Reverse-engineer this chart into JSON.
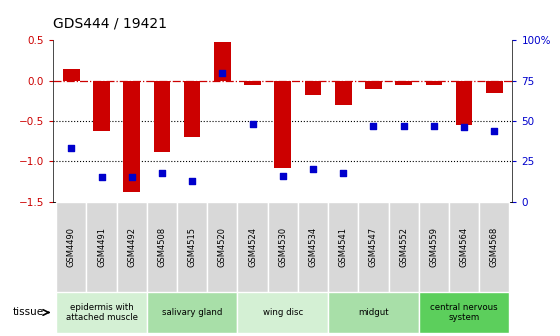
{
  "title": "GDS444 / 19421",
  "samples": [
    "GSM4490",
    "GSM4491",
    "GSM4492",
    "GSM4508",
    "GSM4515",
    "GSM4520",
    "GSM4524",
    "GSM4530",
    "GSM4534",
    "GSM4541",
    "GSM4547",
    "GSM4552",
    "GSM4559",
    "GSM4564",
    "GSM4568"
  ],
  "log_ratio": [
    0.15,
    -0.62,
    -1.38,
    -0.88,
    -0.7,
    0.48,
    -0.05,
    -1.08,
    -0.18,
    -0.3,
    -0.1,
    -0.05,
    -0.05,
    -0.55,
    -0.15
  ],
  "percentile": [
    33,
    15,
    15,
    18,
    13,
    80,
    48,
    16,
    20,
    18,
    47,
    47,
    47,
    46,
    44
  ],
  "tissue_groups": [
    {
      "label": "epidermis with\nattached muscle",
      "start": 0,
      "end": 3,
      "color": "#d4f0d4"
    },
    {
      "label": "salivary gland",
      "start": 3,
      "end": 6,
      "color": "#a8dfa8"
    },
    {
      "label": "wing disc",
      "start": 6,
      "end": 9,
      "color": "#d4f0d4"
    },
    {
      "label": "midgut",
      "start": 9,
      "end": 12,
      "color": "#a8dfa8"
    },
    {
      "label": "central nervous\nsystem",
      "start": 12,
      "end": 15,
      "color": "#5ccf5c"
    }
  ],
  "bar_color": "#cc0000",
  "dot_color": "#0000cc",
  "ylim_left": [
    -1.5,
    0.5
  ],
  "ylim_right": [
    0,
    100
  ],
  "right_ticks": [
    0,
    25,
    50,
    75,
    100
  ],
  "right_tick_labels": [
    "0",
    "25",
    "50",
    "75",
    "100%"
  ],
  "left_ticks": [
    -1.5,
    -1.0,
    -0.5,
    0.0,
    0.5
  ],
  "hline_color": "#cc0000",
  "dotline_color": "black",
  "bg_color": "#ffffff",
  "tick_box_color": "#d8d8d8"
}
